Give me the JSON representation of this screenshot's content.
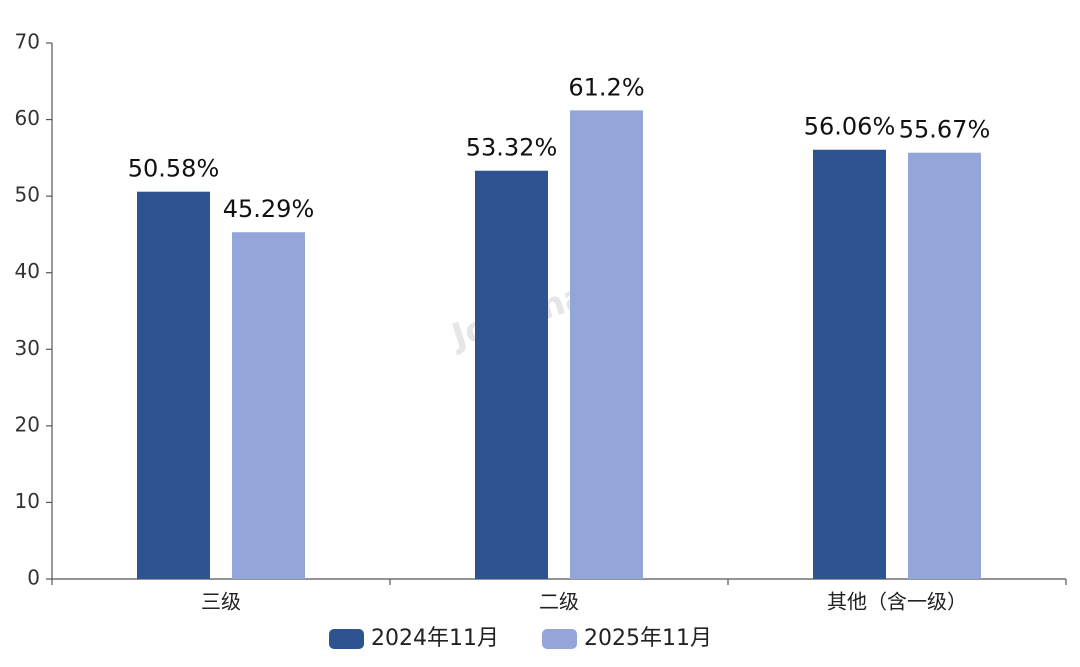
{
  "chart_data": {
    "type": "bar",
    "categories": [
      "三级",
      "二级",
      "其他（含一级）"
    ],
    "series": [
      {
        "name": "2024年11月",
        "color": "#2d5391",
        "values": [
          50.58,
          53.32,
          56.06
        ],
        "value_labels": [
          "50.58%",
          "53.32%",
          "56.06%"
        ]
      },
      {
        "name": "2025年11月",
        "color": "#93a5d9",
        "values": [
          45.29,
          61.2,
          55.67
        ],
        "value_labels": [
          "45.29%",
          "61.2%",
          "55.67%"
        ]
      }
    ],
    "ylim": [
      0,
      70
    ],
    "yticks": [
      0,
      10,
      20,
      30,
      40,
      50,
      60,
      70
    ],
    "grid": false,
    "legend": "bottom",
    "watermark": "Joinchain"
  }
}
